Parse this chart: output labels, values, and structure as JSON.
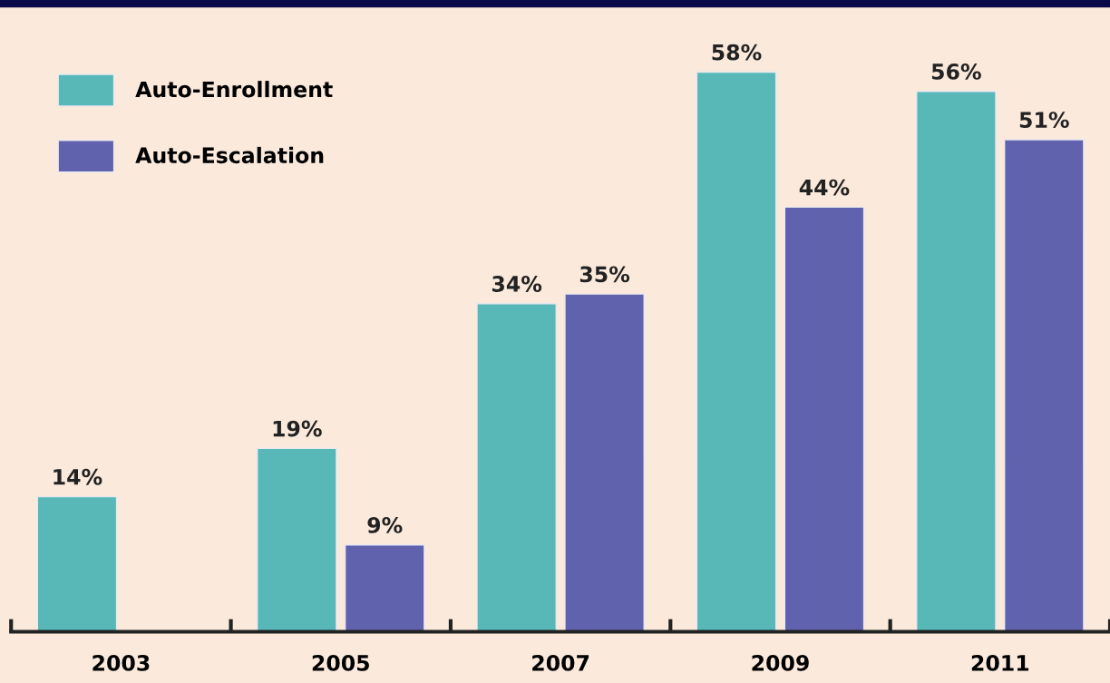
{
  "chart_data": {
    "type": "bar",
    "categories": [
      "2003",
      "2005",
      "2007",
      "2009",
      "2011"
    ],
    "series": [
      {
        "name": "Auto-Enrollment",
        "color": "#58b8b8",
        "values": [
          14,
          19,
          34,
          58,
          56
        ],
        "value_labels": [
          "14%",
          "19%",
          "34%",
          "58%",
          "56%"
        ]
      },
      {
        "name": "Auto-Escalation",
        "color": "#6062ae",
        "values": [
          null,
          9,
          35,
          44,
          51
        ],
        "value_labels": [
          null,
          "9%",
          "35%",
          "44%",
          "51%"
        ]
      }
    ],
    "legend": "top left",
    "grid": false
  }
}
